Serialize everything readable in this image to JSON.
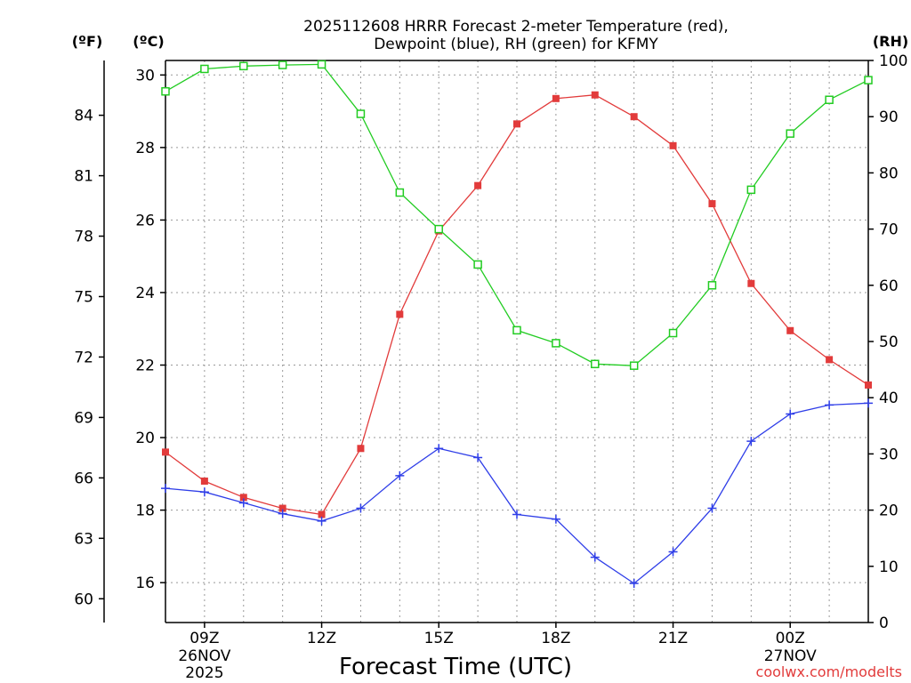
{
  "chart_data": {
    "type": "line",
    "title": "2025112608 HRRR Forecast 2-meter Temperature (red),",
    "subtitle": "Dewpoint (blue), RH (green) for KFMY",
    "xlabel": "Forecast Time (UTC)",
    "credit": "coolwx.com/modelts",
    "units": {
      "fahrenheit": "(ºF)",
      "celsius": "(ºC)",
      "rh": "(RH)"
    },
    "x_hours": [
      8,
      9,
      10,
      11,
      12,
      13,
      14,
      15,
      16,
      17,
      18,
      19,
      20,
      21,
      22,
      23,
      24,
      25,
      26
    ],
    "xlim": [
      8,
      26
    ],
    "x_ticks": [
      {
        "hour": 9,
        "label": "09Z",
        "date": "26NOV",
        "year": "2025"
      },
      {
        "hour": 12,
        "label": "12Z",
        "date": "",
        "year": ""
      },
      {
        "hour": 15,
        "label": "15Z",
        "date": "",
        "year": ""
      },
      {
        "hour": 18,
        "label": "18Z",
        "date": "",
        "year": ""
      },
      {
        "hour": 21,
        "label": "21Z",
        "date": "",
        "year": ""
      },
      {
        "hour": 24,
        "label": "00Z",
        "date": "27NOV",
        "year": ""
      }
    ],
    "celsius_axis": {
      "ylim": [
        14.9,
        30.4
      ],
      "ticks": [
        "16",
        "18",
        "20",
        "22",
        "24",
        "26",
        "28",
        "30"
      ]
    },
    "fahrenheit_axis": {
      "ticks": [
        "60",
        "63",
        "66",
        "69",
        "72",
        "75",
        "78",
        "81",
        "84"
      ]
    },
    "rh_axis": {
      "ylim": [
        0,
        100
      ],
      "ticks": [
        "0",
        "10",
        "20",
        "30",
        "40",
        "50",
        "60",
        "70",
        "80",
        "90",
        "100"
      ]
    },
    "series": [
      {
        "name": "2-meter Temperature (°C)",
        "color": "#e23b3b",
        "marker": "filled-square",
        "axis": "celsius",
        "values": [
          19.6,
          18.8,
          18.35,
          18.05,
          17.88,
          19.7,
          23.4,
          25.7,
          26.95,
          28.65,
          29.35,
          29.45,
          28.85,
          28.05,
          26.45,
          24.25,
          22.95,
          22.15,
          21.45
        ]
      },
      {
        "name": "Dewpoint (°C)",
        "color": "#2f3ee8",
        "marker": "plus",
        "axis": "celsius",
        "values": [
          18.6,
          18.5,
          18.2,
          17.9,
          17.7,
          18.05,
          18.95,
          19.7,
          19.45,
          17.88,
          17.75,
          16.7,
          15.98,
          16.85,
          18.05,
          19.9,
          20.65,
          20.9,
          20.95
        ]
      },
      {
        "name": "RH (%)",
        "color": "#22cc22",
        "marker": "open-square",
        "axis": "rh",
        "values": [
          94.5,
          98.5,
          99.0,
          99.2,
          99.3,
          90.5,
          76.5,
          70.0,
          63.7,
          52.0,
          49.7,
          46.0,
          45.7,
          51.5,
          60.0,
          77.0,
          87.0,
          93.0,
          96.5
        ]
      }
    ]
  }
}
